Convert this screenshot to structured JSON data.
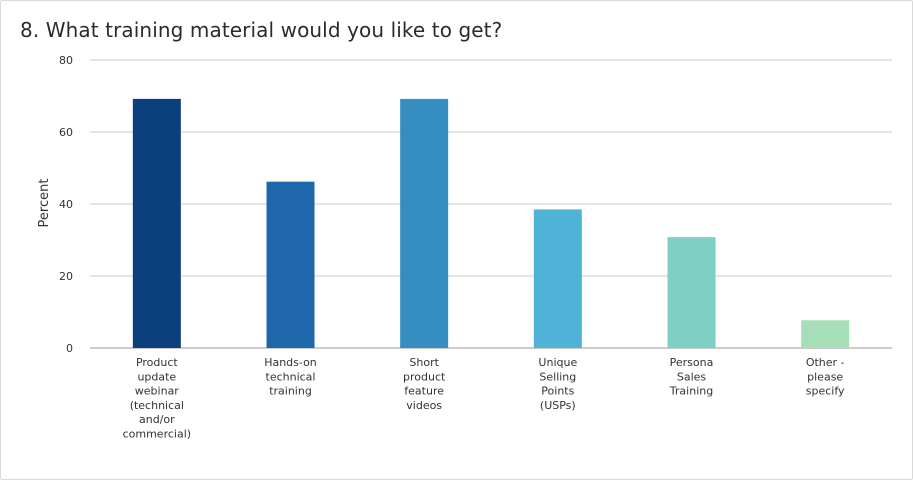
{
  "title": "8. What training material would you like to get?",
  "chart_data": {
    "type": "bar",
    "title": "8. What training material would you like to get?",
    "xlabel": "",
    "ylabel": "Percent",
    "ylim": [
      0,
      80
    ],
    "yticks": [
      0,
      20,
      40,
      60,
      80
    ],
    "grid": true,
    "categories": [
      [
        "Product",
        "update",
        "webinar",
        "(technical",
        "and/or",
        "commercial)"
      ],
      [
        "Hands-on",
        "technical",
        "training"
      ],
      [
        "Short",
        "product",
        "feature",
        "videos"
      ],
      [
        "Unique",
        "Selling",
        "Points",
        "(USPs)"
      ],
      [
        "Persona",
        "Sales",
        "Training"
      ],
      [
        "Other -",
        "please",
        "specify"
      ]
    ],
    "values": [
      69.2,
      46.2,
      69.2,
      38.5,
      30.8,
      7.7
    ],
    "colors": [
      "#0b3f7e",
      "#1f67ab",
      "#358dc2",
      "#4eb3d6",
      "#7ecfc4",
      "#a6dfb7"
    ],
    "grid_color": "#c9c9c9",
    "axis_color": "#9a9a9a"
  }
}
